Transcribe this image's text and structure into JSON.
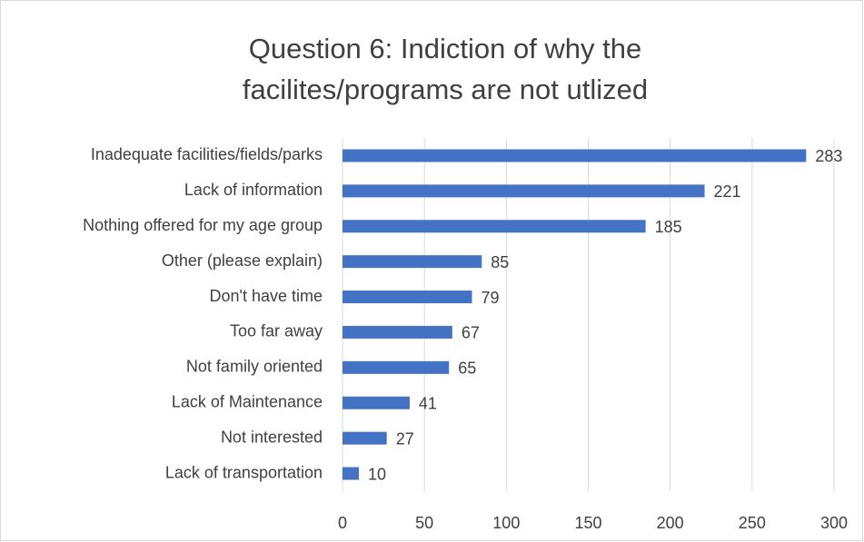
{
  "chart_data": {
    "type": "hbar",
    "title": [
      "Question 6: Indiction of why the",
      "facilites/programs are not utlized"
    ],
    "categories": [
      "Inadequate facilities/fields/parks",
      "Lack of information",
      "Nothing offered for my age group",
      "Other (please explain)",
      "Don't have time",
      "Too far away",
      "Not family oriented",
      "Lack of Maintenance",
      "Not interested",
      "Lack of transportation"
    ],
    "values": [
      283,
      221,
      185,
      85,
      79,
      67,
      65,
      41,
      27,
      10
    ],
    "color": "#4472c4",
    "xlim": [
      0,
      300
    ],
    "xticks": [
      0,
      50,
      100,
      150,
      200,
      250,
      300
    ],
    "grid": true
  }
}
